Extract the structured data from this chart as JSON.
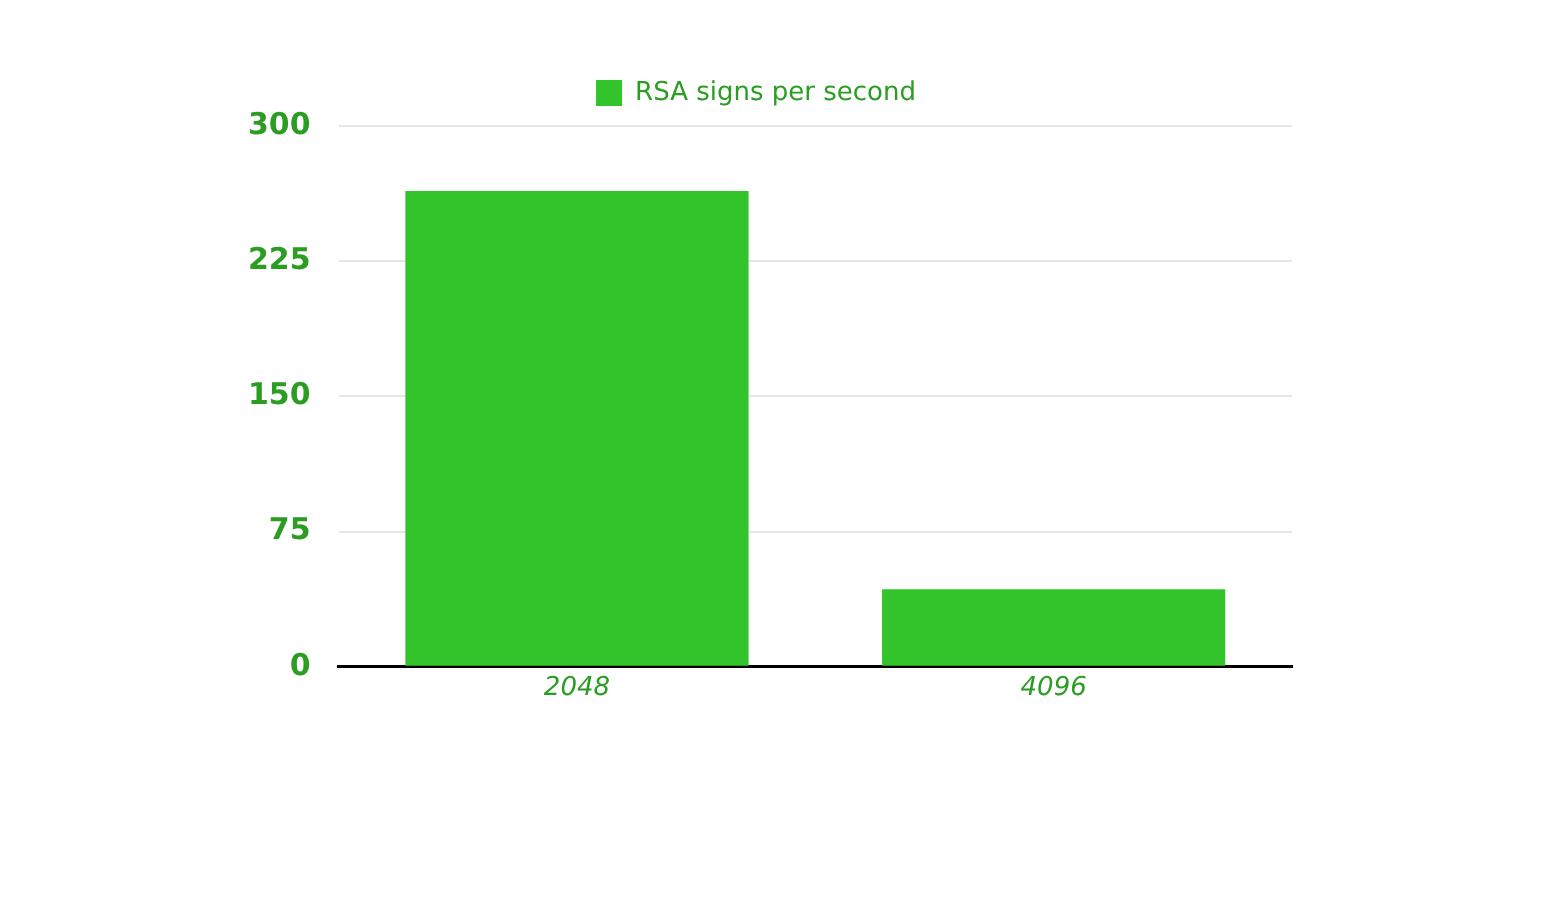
{
  "chart_data": {
    "type": "bar",
    "categories": [
      "2048",
      "4096"
    ],
    "series": [
      {
        "name": "RSA signs per second",
        "color": "#32c42a",
        "values": [
          264,
          43
        ]
      }
    ],
    "ylim": [
      0,
      300
    ],
    "yticks": [
      0,
      75,
      150,
      225,
      300
    ],
    "grid": "y",
    "legend": "top"
  }
}
